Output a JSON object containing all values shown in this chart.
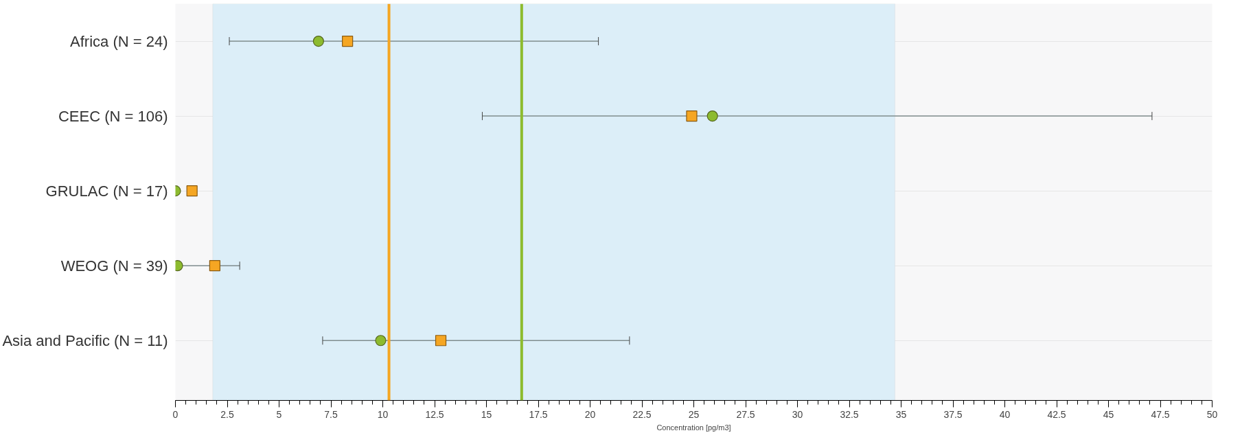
{
  "chart_data": {
    "type": "scatter",
    "orientation": "horizontal",
    "xlabel": "Concentration [pg/m3]",
    "categories": [
      "Africa (N = 24)",
      "CEEC (N = 106)",
      "GRULAC (N = 17)",
      "WEOG (N = 39)",
      "Asia and Pacific (N = 11)"
    ],
    "series": [
      {
        "color": "#8dbb2f",
        "marker": "circle",
        "values": [
          6.9,
          25.9,
          0,
          0.1,
          9.9
        ],
        "errors": [
          [
            2.6,
            20.4
          ],
          [
            14.8,
            47.1
          ],
          null,
          [
            0.1,
            3.1
          ],
          [
            7.1,
            21.9
          ]
        ]
      },
      {
        "color": "#f5a623",
        "marker": "square",
        "values": [
          8.3,
          24.9,
          0.8,
          1.9,
          12.8
        ]
      }
    ],
    "xlim": [
      0,
      50
    ],
    "xticks": [
      0,
      2.5,
      5,
      7.5,
      10,
      12.5,
      15,
      17.5,
      20,
      22.5,
      25,
      27.5,
      30,
      32.5,
      35,
      37.5,
      40,
      42.5,
      45,
      47.5,
      50
    ],
    "ref_lines": [
      {
        "axis": "x",
        "value": 10.3,
        "color": "#f5a623"
      },
      {
        "axis": "x",
        "value": 16.7,
        "color": "#8dbb2f"
      }
    ],
    "bands": [
      {
        "axis": "x",
        "from": 1.8,
        "to": 34.7,
        "color": "#dceef8"
      }
    ],
    "grid": "y"
  }
}
